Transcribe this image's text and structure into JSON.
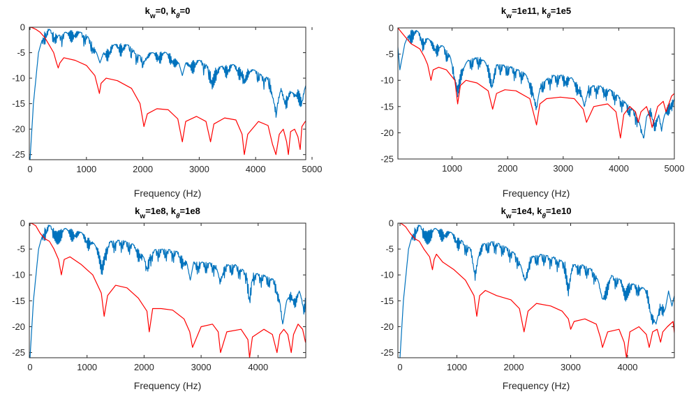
{
  "figure": {
    "panels": [
      {
        "title_prefix": "k",
        "sub1": "w",
        "mid": "=0, k",
        "sub2": "θ",
        "suffix": "=0"
      },
      {
        "title_prefix": "k",
        "sub1": "w",
        "mid": "=1e11, k",
        "sub2": "θ",
        "suffix": "=1e5"
      },
      {
        "title_prefix": "k",
        "sub1": "w",
        "mid": "=1e8, k",
        "sub2": "θ",
        "suffix": "=1e8"
      },
      {
        "title_prefix": "k",
        "sub1": "w",
        "mid": "=1e4, k",
        "sub2": "θ",
        "suffix": "=1e10"
      }
    ]
  },
  "colors": {
    "series_blue": "#0072BD",
    "series_red": "#FF0000",
    "axes": "#262626"
  },
  "chart_data": [
    {
      "type": "line",
      "xlabel": "Frequency (Hz)",
      "xlim": [
        0,
        5000
      ],
      "ylim": [
        -26,
        0
      ],
      "xticks": [
        0,
        1000,
        2000,
        3000,
        4000,
        5000
      ],
      "yticks": [
        0,
        -5,
        -10,
        -15,
        -20,
        -25
      ],
      "series": [
        {
          "color": "blue",
          "ripple": true,
          "x": [
            0,
            60,
            150,
            250,
            330,
            420,
            500,
            620,
            760,
            900,
            1000,
            1100,
            1180,
            1240,
            1300,
            1450,
            1600,
            1750,
            1880,
            2000,
            2060,
            2200,
            2350,
            2500,
            2640,
            2700,
            2760,
            2900,
            3050,
            3180,
            3230,
            3290,
            3450,
            3600,
            3750,
            3800,
            3860,
            4000,
            4120,
            4250,
            4320,
            4370,
            4400,
            4450,
            4520,
            4600,
            4680,
            4750,
            4820,
            4900,
            5000
          ],
          "y": [
            -26,
            -15,
            -5,
            -1,
            -0.3,
            -1,
            -1.6,
            -1,
            -0.5,
            -1,
            -1.5,
            -3,
            -5,
            -7,
            -5,
            -3.5,
            -3.2,
            -3.5,
            -5,
            -6,
            -5,
            -5,
            -4.8,
            -5.2,
            -7,
            -9.5,
            -7,
            -6.5,
            -6.5,
            -8,
            -10,
            -8,
            -7.5,
            -7.3,
            -8,
            -9.5,
            -8,
            -8.5,
            -9.5,
            -10,
            -14,
            -16.5,
            -14,
            -12,
            -14,
            -12.5,
            -13,
            -12,
            -14,
            -11,
            -9
          ]
        },
        {
          "color": "red",
          "ripple": false,
          "x": [
            0,
            40,
            100,
            180,
            260,
            340,
            420,
            470,
            500,
            530,
            600,
            800,
            1000,
            1150,
            1230,
            1260,
            1350,
            1550,
            1800,
            1950,
            2020,
            2080,
            2250,
            2450,
            2620,
            2700,
            2760,
            2950,
            3120,
            3200,
            3260,
            3450,
            3650,
            3760,
            3800,
            3860,
            4050,
            4220,
            4300,
            4360,
            4420,
            4490,
            4550,
            4580,
            4620,
            4690,
            4750,
            4790,
            4820,
            4880,
            5000
          ],
          "y": [
            0,
            -0.1,
            -0.4,
            -1,
            -2,
            -3.5,
            -5,
            -7,
            -8,
            -7,
            -6,
            -6.5,
            -7.5,
            -9.5,
            -13,
            -11,
            -10,
            -10.5,
            -12,
            -15,
            -19.5,
            -17,
            -16,
            -16.2,
            -18,
            -22.5,
            -18.5,
            -17.5,
            -18.5,
            -22.5,
            -19,
            -17.8,
            -18.2,
            -21,
            -25,
            -21,
            -18.5,
            -19.3,
            -23,
            -25,
            -21,
            -20,
            -22.5,
            -25,
            -20.5,
            -20,
            -21.5,
            -24,
            -19.5,
            -18.5,
            -17.5
          ]
        }
      ]
    },
    {
      "type": "line",
      "xlabel": "Frequency (Hz)",
      "xlim": [
        0,
        5000
      ],
      "ylim": [
        -25,
        0
      ],
      "xticks": [
        1000,
        2000,
        3000,
        4000,
        5000
      ],
      "yticks": [
        0,
        -5,
        -10,
        -15,
        -20,
        -25
      ],
      "series": [
        {
          "color": "blue",
          "ripple": true,
          "x": [
            0,
            60,
            150,
            250,
            320,
            400,
            480,
            560,
            700,
            850,
            950,
            1040,
            1100,
            1160,
            1300,
            1500,
            1650,
            1720,
            1780,
            1900,
            2100,
            2300,
            2450,
            2520,
            2600,
            2800,
            3000,
            3150,
            3300,
            3380,
            3450,
            3650,
            3900,
            4100,
            4200,
            4300,
            4400,
            4450,
            4500,
            4580,
            4650,
            4720,
            4770,
            4850,
            4920,
            5000
          ],
          "y": [
            -0.5,
            -8,
            -3,
            -0.5,
            -0.2,
            -0.8,
            -2,
            -2,
            -3,
            -3.5,
            -5,
            -8,
            -11,
            -8,
            -6,
            -5.5,
            -7,
            -10,
            -7,
            -7,
            -7.5,
            -8.5,
            -11,
            -15,
            -10.5,
            -9,
            -9,
            -9.5,
            -11,
            -15,
            -11,
            -11,
            -12,
            -14,
            -15,
            -16,
            -19,
            -21,
            -17,
            -15,
            -18,
            -16.5,
            -19,
            -15.5,
            -14,
            -13.5
          ]
        },
        {
          "color": "red",
          "ripple": false,
          "x": [
            0,
            40,
            100,
            180,
            260,
            340,
            420,
            500,
            560,
            620,
            660,
            760,
            900,
            1050,
            1100,
            1150,
            1250,
            1450,
            1650,
            1730,
            1800,
            1950,
            2150,
            2400,
            2520,
            2580,
            2700,
            2950,
            3200,
            3360,
            3420,
            3550,
            3800,
            3950,
            4030,
            4090,
            4200,
            4300,
            4350,
            4400,
            4500,
            4560,
            4600,
            4700,
            4800,
            4850,
            4950,
            5000
          ],
          "y": [
            0,
            -0.2,
            -1,
            -2,
            -3,
            -3.5,
            -4,
            -5.5,
            -7,
            -10,
            -8,
            -7.5,
            -8,
            -10,
            -14.5,
            -11,
            -10,
            -10.5,
            -12,
            -15.5,
            -12.5,
            -11.8,
            -12,
            -13.5,
            -18.5,
            -14.5,
            -13.5,
            -13.2,
            -13.5,
            -15.5,
            -18,
            -15,
            -14.5,
            -16,
            -21,
            -16.5,
            -15,
            -16,
            -18,
            -16,
            -15,
            -17,
            -19,
            -15,
            -14,
            -16,
            -13,
            -12.5
          ]
        }
      ]
    },
    {
      "type": "line",
      "xlabel": "Frequency (Hz)",
      "xlim": [
        0,
        4950
      ],
      "ylim": [
        -26,
        0
      ],
      "xticks": [
        0,
        1000,
        2000,
        3000,
        4000
      ],
      "yticks": [
        0,
        -5,
        -10,
        -15,
        -20,
        -25
      ],
      "series": [
        {
          "color": "blue",
          "ripple": true,
          "x": [
            0,
            60,
            150,
            250,
            330,
            420,
            480,
            540,
            620,
            760,
            900,
            1050,
            1200,
            1260,
            1320,
            1400,
            1600,
            1800,
            1950,
            2050,
            2100,
            2200,
            2400,
            2600,
            2750,
            2810,
            2870,
            3050,
            3250,
            3330,
            3400,
            3600,
            3800,
            3850,
            3900,
            4100,
            4300,
            4380,
            4430,
            4500,
            4580,
            4650,
            4720,
            4800,
            4870,
            4950
          ],
          "y": [
            -26,
            -15,
            -5,
            -1,
            -0.3,
            -1,
            -1.6,
            -1.2,
            -1,
            -1.2,
            -1.8,
            -3,
            -5,
            -8,
            -5,
            -3.5,
            -3.2,
            -4,
            -5.5,
            -8,
            -6,
            -5,
            -5,
            -5.5,
            -7.5,
            -11,
            -7.5,
            -7.5,
            -7.8,
            -11,
            -8,
            -8,
            -9.5,
            -14,
            -9.5,
            -10,
            -11,
            -15,
            -19,
            -15,
            -13,
            -14.5,
            -13,
            -16,
            -12,
            -9.5
          ]
        },
        {
          "color": "red",
          "ripple": false,
          "x": [
            0,
            40,
            100,
            180,
            260,
            340,
            420,
            500,
            550,
            600,
            700,
            900,
            1100,
            1250,
            1300,
            1360,
            1500,
            1700,
            1900,
            2050,
            2090,
            2150,
            2300,
            2500,
            2700,
            2800,
            2850,
            3000,
            3200,
            3300,
            3340,
            3450,
            3700,
            3820,
            3850,
            3900,
            4100,
            4250,
            4330,
            4380,
            4450,
            4520,
            4580,
            4620,
            4700,
            4780,
            4830,
            4880,
            4950
          ],
          "y": [
            0,
            -0.1,
            -0.5,
            -2,
            -3,
            -3.5,
            -5,
            -7,
            -10,
            -7,
            -6.5,
            -8,
            -10,
            -13.5,
            -18,
            -14,
            -12,
            -12.5,
            -14.5,
            -17,
            -21,
            -16.5,
            -16.5,
            -16.8,
            -18.5,
            -21,
            -24,
            -20,
            -19.5,
            -21,
            -25,
            -21,
            -20.5,
            -22.5,
            -26,
            -22,
            -20.5,
            -21.5,
            -25,
            -21.5,
            -20.5,
            -21.5,
            -25,
            -21.5,
            -19.5,
            -20.5,
            -23,
            -19,
            -18.5
          ]
        }
      ]
    },
    {
      "type": "line",
      "xlabel": "Frequency (Hz)",
      "xlim": [
        0,
        4950
      ],
      "ylim": [
        -26,
        0
      ],
      "xticks": [
        0,
        1000,
        2000,
        3000,
        4000
      ],
      "yticks": [
        0,
        -5,
        -10,
        -15,
        -20,
        -25
      ],
      "series": [
        {
          "color": "blue",
          "ripple": true,
          "x": [
            0,
            60,
            150,
            250,
            330,
            420,
            480,
            540,
            620,
            760,
            900,
            1050,
            1250,
            1320,
            1380,
            1450,
            1650,
            1850,
            2050,
            2150,
            2200,
            2280,
            2480,
            2700,
            2900,
            2960,
            3020,
            3200,
            3400,
            3500,
            3560,
            3700,
            3900,
            3960,
            4020,
            4200,
            4350,
            4420,
            4500,
            4580,
            4660,
            4720,
            4780,
            4850,
            4900,
            4950
          ],
          "y": [
            -26,
            -15,
            -5,
            -1,
            -0.3,
            -1,
            -1.6,
            -1.2,
            -1,
            -1.2,
            -1.8,
            -3,
            -5,
            -9,
            -5,
            -4,
            -3.5,
            -4.5,
            -6,
            -9,
            -11,
            -6.5,
            -6,
            -6.5,
            -7.5,
            -12,
            -8,
            -8,
            -9,
            -11.5,
            -14,
            -10,
            -11,
            -13,
            -11.5,
            -12,
            -13,
            -17,
            -19.5,
            -15,
            -16.5,
            -13,
            -16,
            -12.5,
            -11,
            -10.5
          ]
        },
        {
          "color": "red",
          "ripple": false,
          "x": [
            0,
            40,
            100,
            180,
            260,
            340,
            420,
            520,
            570,
            600,
            640,
            750,
            950,
            1150,
            1300,
            1350,
            1400,
            1500,
            1700,
            1950,
            2100,
            2180,
            2250,
            2400,
            2650,
            2850,
            2960,
            3000,
            3060,
            3250,
            3450,
            3520,
            3560,
            3650,
            3850,
            3940,
            3980,
            4040,
            4200,
            4330,
            4380,
            4440,
            4520,
            4580,
            4620,
            4700,
            4800,
            4840,
            4900,
            4950
          ],
          "y": [
            0,
            -0.2,
            -0.7,
            -2,
            -3,
            -3.5,
            -5,
            -6.5,
            -9,
            -7,
            -6,
            -7.5,
            -9,
            -11,
            -14,
            -18,
            -14,
            -13,
            -14,
            -14.8,
            -16.5,
            -21,
            -17,
            -15.5,
            -16,
            -17,
            -18.5,
            -20.5,
            -19,
            -18.5,
            -19.5,
            -22,
            -24,
            -21,
            -20.5,
            -23,
            -26,
            -21,
            -20,
            -21.5,
            -24,
            -21,
            -20.5,
            -23,
            -21,
            -20,
            -19,
            -23,
            -17.5,
            -16.5
          ]
        }
      ]
    }
  ]
}
